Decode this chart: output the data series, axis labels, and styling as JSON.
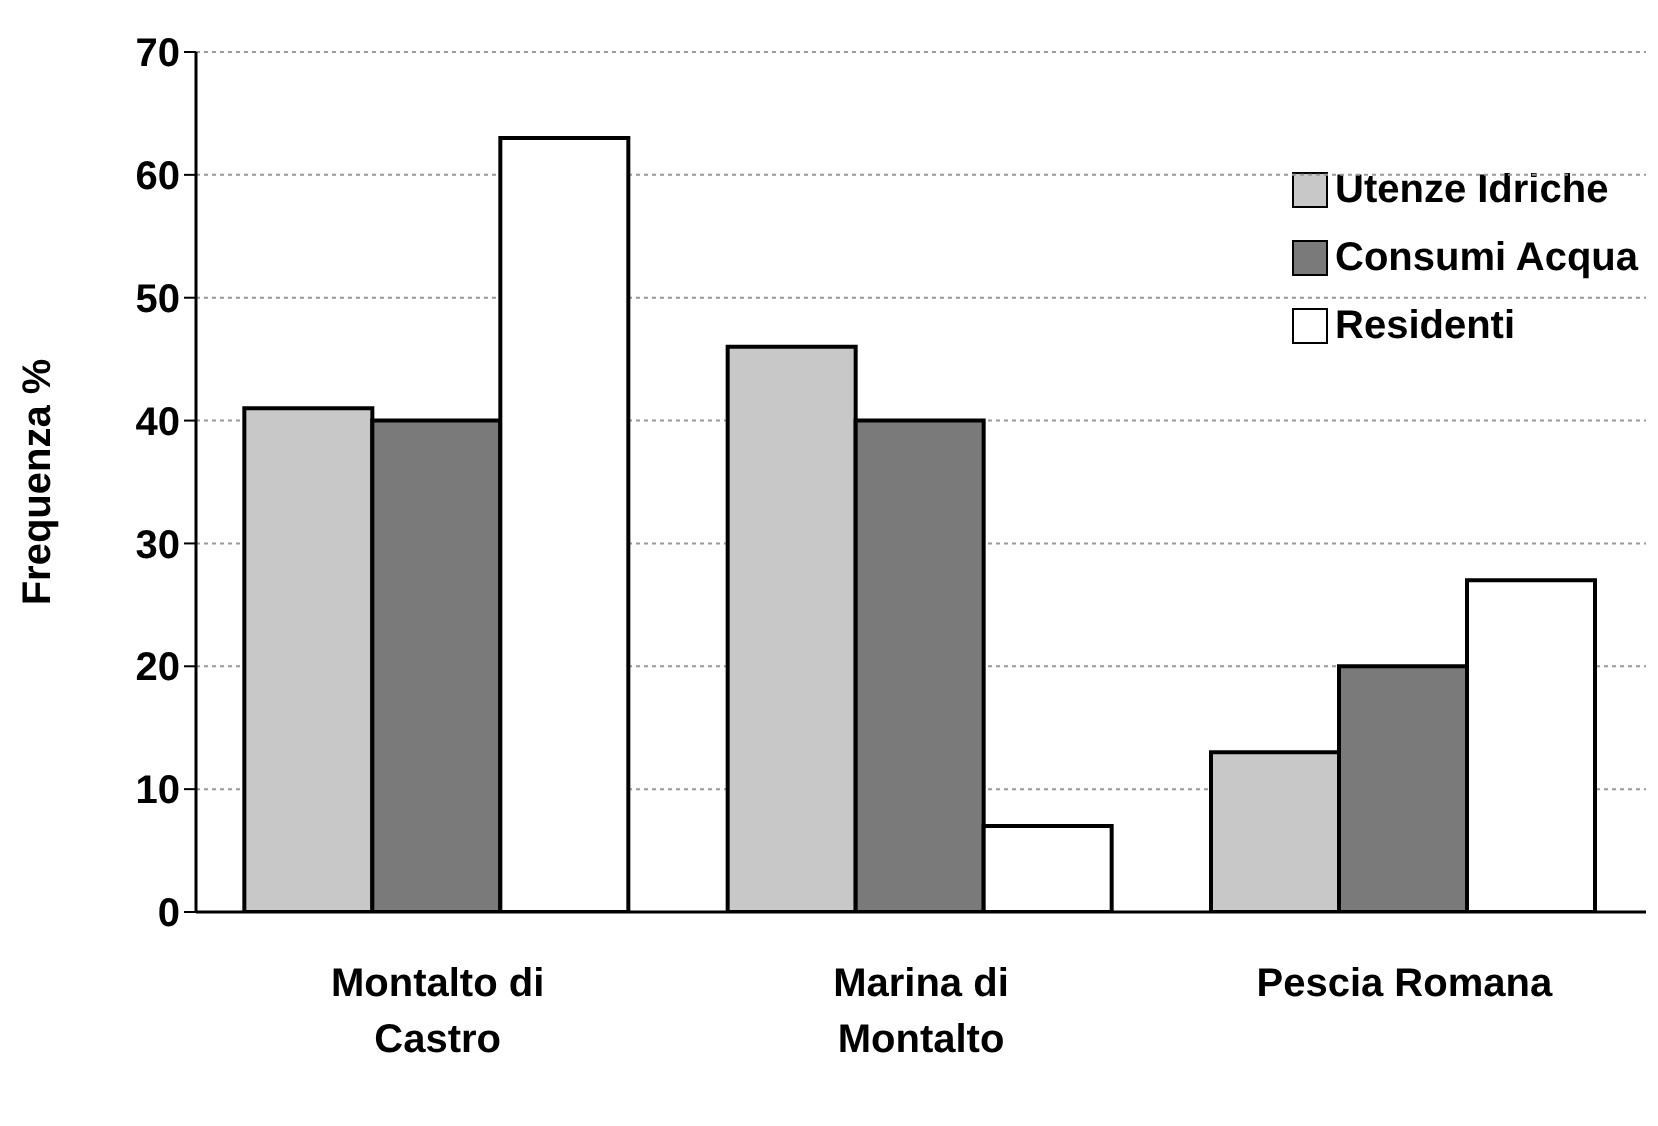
{
  "chart_data": {
    "type": "bar",
    "ylabel": "Frequenza %",
    "categories": [
      "Montalto di Castro",
      "Marina di Montalto",
      "Pescia Romana"
    ],
    "series": [
      {
        "name": "Utenze Idriche",
        "color": "#c8c8c8",
        "values": [
          41,
          46,
          13
        ]
      },
      {
        "name": "Consumi Acqua",
        "color": "#7a7a7a",
        "values": [
          40,
          40,
          20
        ]
      },
      {
        "name": "Residenti",
        "color": "#ffffff",
        "values": [
          63,
          7,
          27
        ]
      }
    ],
    "ylim": [
      0,
      70
    ],
    "yticks": [
      0,
      10,
      20,
      30,
      40,
      50,
      60,
      70
    ],
    "grid": "y",
    "legend": "top right"
  }
}
